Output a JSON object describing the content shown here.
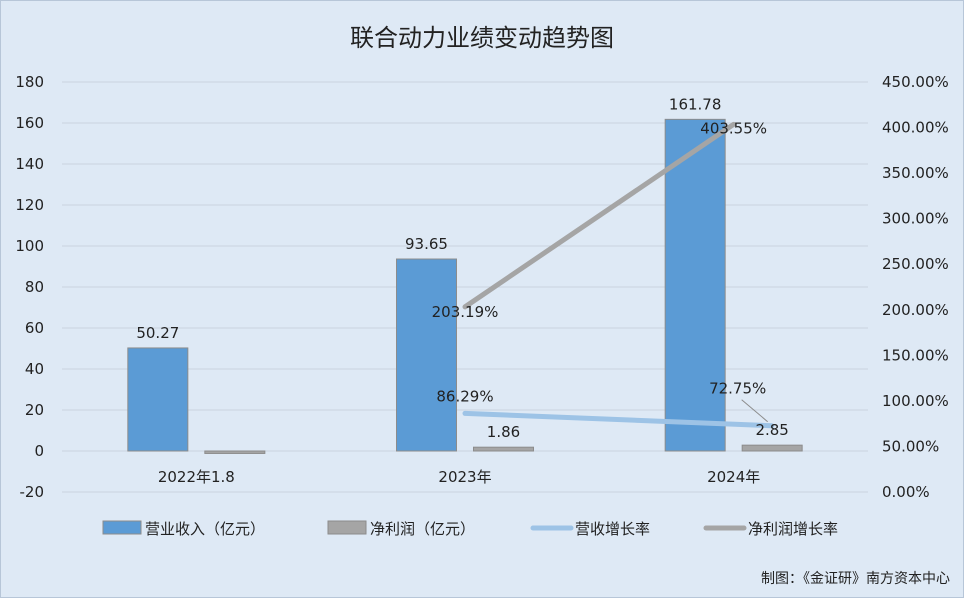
{
  "chart_data": {
    "type": "bar",
    "title": "联合动力业绩变动趋势图",
    "categories": [
      "2022年1.8",
      "2023年",
      "2024年"
    ],
    "y_left": {
      "min": -20,
      "max": 180,
      "step": 20,
      "ticks": [
        "-20",
        "0",
        "20",
        "40",
        "60",
        "80",
        "100",
        "120",
        "140",
        "160",
        "180"
      ]
    },
    "y_right": {
      "min": 0,
      "max": 450,
      "step": 50,
      "ticks": [
        "0.00%",
        "50.00%",
        "100.00%",
        "150.00%",
        "200.00%",
        "250.00%",
        "300.00%",
        "350.00%",
        "400.00%",
        "450.00%"
      ]
    },
    "grid": true,
    "legend_position": "bottom",
    "series": [
      {
        "name": "营业收入（亿元）",
        "type": "bar",
        "color": "#5b9bd5",
        "axis": "left",
        "values": [
          50.27,
          93.65,
          161.78
        ],
        "labels": [
          "50.27",
          "93.65",
          "161.78"
        ]
      },
      {
        "name": "净利润（亿元）",
        "type": "bar",
        "color": "#a5a5a5",
        "axis": "left",
        "values": [
          -1.2,
          1.86,
          2.85
        ],
        "labels": [
          "",
          "1.86",
          "2.85"
        ]
      },
      {
        "name": "营收增长率",
        "type": "line",
        "color": "#9dc3e6",
        "axis": "right",
        "values": [
          null,
          86.29,
          72.75
        ],
        "labels": [
          "",
          "86.29%",
          "72.75%"
        ]
      },
      {
        "name": "净利润增长率",
        "type": "line",
        "color": "#a5a5a5",
        "axis": "right",
        "values": [
          null,
          203.19,
          403.55
        ],
        "labels": [
          "",
          "203.19%",
          "403.55%"
        ]
      }
    ]
  },
  "credit": "制图：《金证研》南方资本中心"
}
